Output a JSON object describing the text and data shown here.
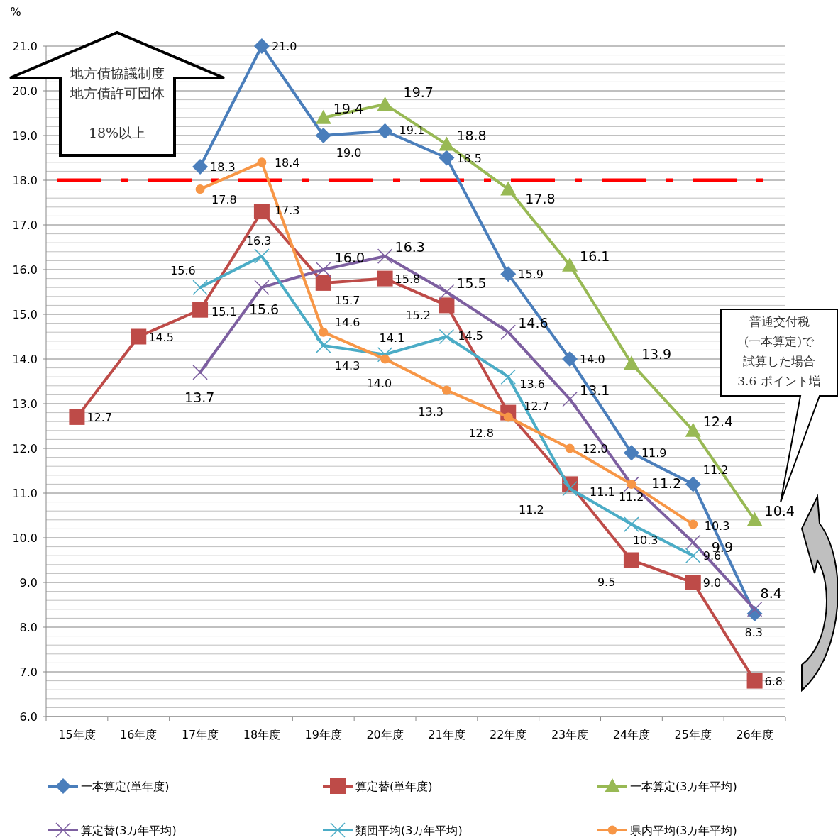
{
  "chart_data": {
    "type": "line",
    "ylabel": "%",
    "categories": [
      "15年度",
      "16年度",
      "17年度",
      "18年度",
      "19年度",
      "20年度",
      "21年度",
      "22年度",
      "23年度",
      "24年度",
      "25年度",
      "26年度"
    ],
    "series": [
      {
        "name": "一本算定(単年度)",
        "color": "#4a7ebb",
        "marker": "diamond",
        "values": [
          null,
          null,
          18.3,
          21.0,
          19.0,
          19.1,
          18.5,
          15.9,
          14.0,
          11.9,
          11.2,
          8.3
        ],
        "value_labels": [
          null,
          null,
          "18.3",
          "21.0",
          "19.0",
          "19.1",
          "18.5",
          "15.9",
          "14.0",
          "11.9",
          "11.2",
          "8.3"
        ]
      },
      {
        "name": "算定替(単年度)",
        "color": "#be4b48",
        "marker": "square",
        "values": [
          12.7,
          14.5,
          15.1,
          17.3,
          15.7,
          15.8,
          15.2,
          12.8,
          11.2,
          9.5,
          9.0,
          6.8
        ],
        "value_labels": [
          "12.7",
          "14.5",
          "15.1",
          "17.3",
          "15.7",
          "15.8",
          "15.2",
          "12.8",
          "11.2",
          "9.5",
          "9.0",
          "6.8"
        ]
      },
      {
        "name": "一本算定(3カ年平均)",
        "color": "#98b954",
        "marker": "triangle",
        "values": [
          null,
          null,
          null,
          null,
          19.4,
          19.7,
          18.8,
          17.8,
          16.1,
          13.9,
          12.4,
          10.4
        ],
        "value_labels": [
          null,
          null,
          null,
          null,
          "19.4",
          "19.7",
          "18.8",
          "17.8",
          "16.1",
          "13.9",
          "12.4",
          "10.4"
        ]
      },
      {
        "name": "算定替(3カ年平均)",
        "color": "#7d5fa0",
        "marker": "cross",
        "values": [
          null,
          null,
          13.7,
          15.6,
          16.0,
          16.3,
          15.5,
          14.6,
          13.1,
          11.2,
          9.9,
          8.4
        ],
        "value_labels": [
          null,
          null,
          "13.7",
          "15.6",
          "16.0",
          "16.3",
          "15.5",
          "14.6",
          "13.1",
          "11.2",
          "9.9",
          "8.4"
        ]
      },
      {
        "name": "類団平均(3カ年平均)",
        "color": "#4bacc6",
        "marker": "cross",
        "values": [
          null,
          null,
          15.6,
          16.3,
          14.3,
          14.1,
          14.5,
          13.6,
          11.1,
          10.3,
          9.6,
          null
        ],
        "value_labels": [
          null,
          null,
          "15.6",
          "16.3",
          "14.3",
          "14.1",
          "14.5",
          "13.6",
          "11.1",
          "10.3",
          "9.6",
          null
        ]
      },
      {
        "name": "県内平均(3カ年平均)",
        "color": "#f79646",
        "marker": "circle",
        "values": [
          null,
          null,
          17.8,
          18.4,
          14.6,
          14.0,
          13.3,
          12.7,
          12.0,
          11.2,
          10.3,
          null
        ],
        "value_labels": [
          null,
          null,
          "17.8",
          "18.4",
          "14.6",
          "14.0",
          "13.3",
          "12.7",
          "12.0",
          "11.2",
          "10.3",
          null
        ]
      }
    ],
    "ylim": [
      6,
      21
    ],
    "yticks": [
      {
        "value": 6,
        "label": "6.0"
      },
      {
        "value": 7,
        "label": "7.0"
      },
      {
        "value": 8,
        "label": "8.0"
      },
      {
        "value": 9,
        "label": "9.0"
      },
      {
        "value": 10,
        "label": "10.0"
      },
      {
        "value": 11,
        "label": "11.0"
      },
      {
        "value": 12,
        "label": "12.0"
      },
      {
        "value": 13,
        "label": "13.0"
      },
      {
        "value": 14,
        "label": "14.0"
      },
      {
        "value": 15,
        "label": "15.0"
      },
      {
        "value": 16,
        "label": "16.0"
      },
      {
        "value": 17,
        "label": "17.0"
      },
      {
        "value": 18,
        "label": "18.0"
      },
      {
        "value": 19,
        "label": "19.0"
      },
      {
        "value": 20,
        "label": "20.0"
      },
      {
        "value": 21,
        "label": "21.0"
      }
    ],
    "grid": "y",
    "legend": "bottom",
    "line_style": "solid",
    "ref_lines": [
      {
        "axis": "y",
        "value": 18,
        "color": "#ff0000",
        "line_style": "dashdot"
      }
    ],
    "annotations": [
      "地方債協議制度",
      "地方債許可団体",
      "18%以上",
      "普通交付税",
      "(一本算定)で",
      "試算した場合",
      "3.6 ポイント増"
    ]
  }
}
